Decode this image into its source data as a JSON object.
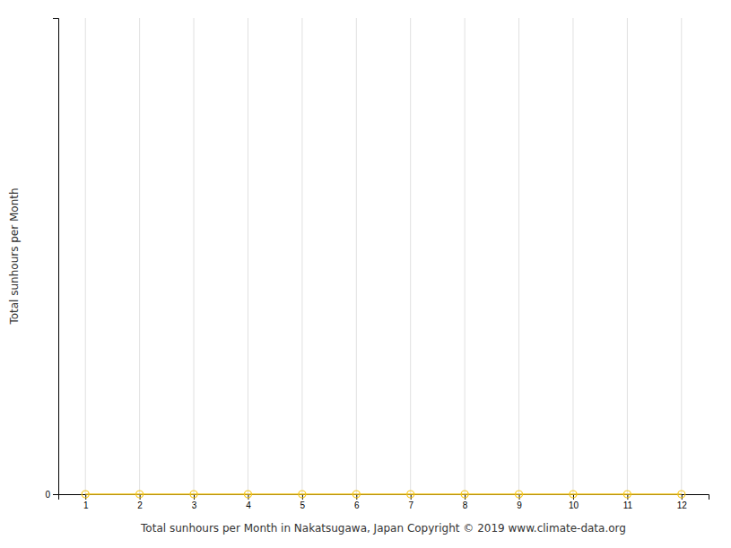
{
  "chart_data": {
    "type": "line",
    "x": [
      1,
      2,
      3,
      4,
      5,
      6,
      7,
      8,
      9,
      10,
      11,
      12
    ],
    "values": [
      0,
      0,
      0,
      0,
      0,
      0,
      0,
      0,
      0,
      0,
      0,
      0
    ],
    "color": "#f5c518",
    "marker": "circle",
    "xlabel": "Total sunhours per Month in Nakatsugawa, Japan Copyright © 2019 www.climate-data.org",
    "ylabel": "Total sunhours per Month",
    "xlim": [
      0.5,
      12.5
    ],
    "ylim": [
      0,
      600
    ],
    "xticks": [
      1,
      2,
      3,
      4,
      5,
      6,
      7,
      8,
      9,
      10,
      11,
      12
    ],
    "yticks": [
      0
    ],
    "grid": "x"
  }
}
